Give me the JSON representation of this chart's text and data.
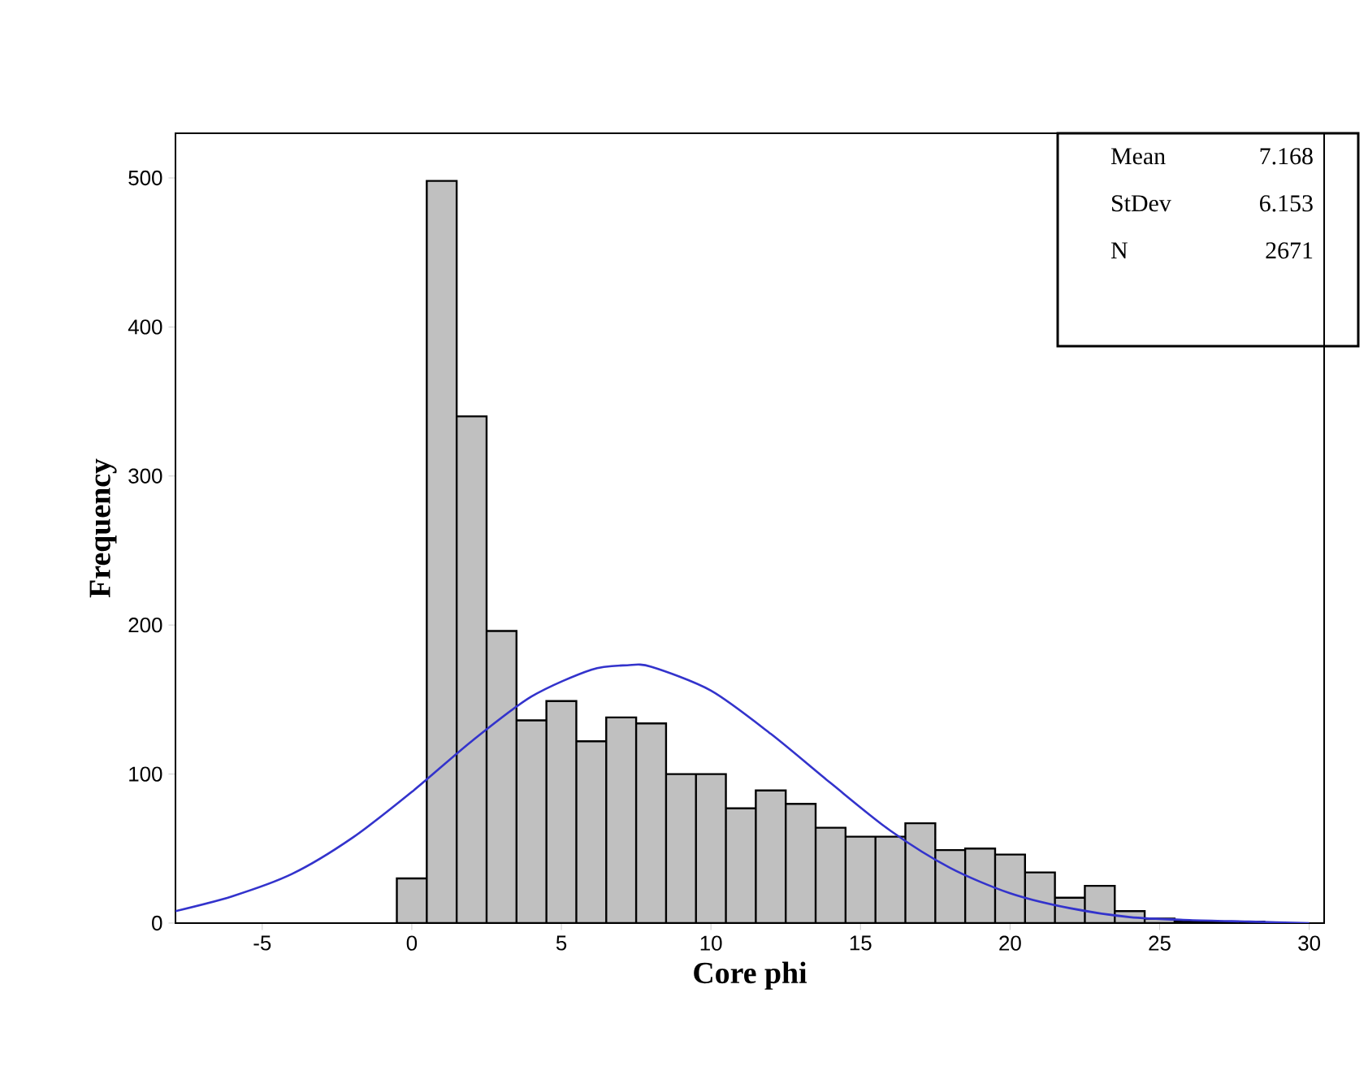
{
  "chart_data": {
    "type": "histogram",
    "xlabel": "Core phi",
    "ylabel": "Frequency",
    "bins": [
      -0.5,
      0.5,
      1.5,
      2.5,
      3.5,
      4.5,
      5.5,
      6.5,
      7.5,
      8.5,
      9.5,
      10.5,
      11.5,
      12.5,
      13.5,
      14.5,
      15.5,
      16.5,
      17.5,
      18.5,
      19.5,
      20.5,
      21.5,
      22.5,
      23.5,
      24.5,
      25.5,
      26.5,
      27.5,
      28.5
    ],
    "values": [
      30,
      498,
      340,
      196,
      136,
      149,
      122,
      138,
      134,
      100,
      100,
      77,
      89,
      80,
      64,
      58,
      58,
      67,
      49,
      50,
      46,
      34,
      17,
      25,
      8,
      3,
      1,
      1,
      1
    ],
    "color": "#c0c0c0",
    "series": [
      {
        "type": "line",
        "color": "#3333cc",
        "x": [
          -7.9,
          -6,
          -4,
          -2,
          0,
          2,
          4,
          6,
          7.2,
          8,
          10,
          12,
          14,
          16,
          18,
          20,
          22,
          24,
          26,
          28,
          30
        ],
        "values": [
          8,
          18,
          33,
          57,
          88,
          122,
          152,
          170,
          173,
          172,
          156,
          127,
          94,
          62,
          37,
          20,
          10,
          4,
          2,
          1,
          0
        ]
      }
    ],
    "xlim": [
      -7.9,
      30.5
    ],
    "ylim": [
      0,
      530
    ],
    "xticks": [
      -5,
      0,
      5,
      10,
      15,
      20,
      25,
      30
    ],
    "yticks": [
      0,
      100,
      200,
      300,
      400,
      500
    ],
    "annotations": [
      "Mean",
      "7.168",
      "StDev",
      "6.153",
      "N",
      "2671"
    ],
    "grid": false
  }
}
